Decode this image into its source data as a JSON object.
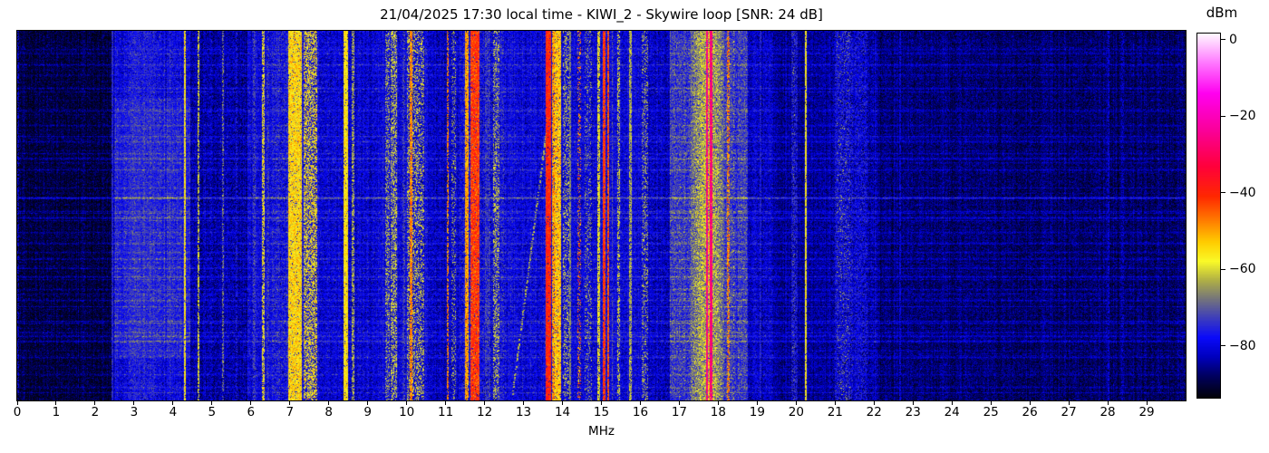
{
  "chart_data": {
    "type": "heatmap",
    "subtype": "radio-spectrogram-waterfall",
    "title": "21/04/2025 17:30 local time - KIWI_2 - Skywire loop [SNR: 24 dB]",
    "xlabel": "MHz",
    "x_range": [
      0,
      30
    ],
    "x_ticks": [
      0,
      1,
      2,
      3,
      4,
      5,
      6,
      7,
      8,
      9,
      10,
      11,
      12,
      13,
      14,
      15,
      16,
      17,
      18,
      19,
      20,
      21,
      22,
      23,
      24,
      25,
      26,
      27,
      28,
      29
    ],
    "y_axis": "time (no tick labels shown)",
    "grid": false,
    "colorbar": {
      "label": "dBm",
      "ticks": [
        0,
        -20,
        -40,
        -60,
        -80
      ],
      "range_top_dbm": 1.6,
      "range_bottom_dbm": -93.6,
      "colormap_stops": [
        [
          1.6,
          "#fff8ff"
        ],
        [
          -6,
          "#ff78ff"
        ],
        [
          -14,
          "#ff00f0"
        ],
        [
          -24,
          "#fa0096"
        ],
        [
          -33,
          "#ff003c"
        ],
        [
          -41,
          "#ff2800"
        ],
        [
          -47,
          "#ff7800"
        ],
        [
          -53,
          "#ffcd00"
        ],
        [
          -58,
          "#fafa28"
        ],
        [
          -63,
          "#afaf46"
        ],
        [
          -68,
          "#73737d"
        ],
        [
          -73,
          "#3c3cbe"
        ],
        [
          -78,
          "#0a0afa"
        ],
        [
          -83,
          "#0000be"
        ],
        [
          -88,
          "#00005f"
        ],
        [
          -93.6,
          "#02020a"
        ]
      ]
    },
    "noise_floor_regions": [
      {
        "f0": 0.0,
        "f1": 2.42,
        "dbm": -90.5
      },
      {
        "f0": 2.42,
        "f1": 2.5,
        "dbm": -85
      },
      {
        "f0": 2.5,
        "f1": 4.45,
        "dbm": -80
      },
      {
        "f0": 4.45,
        "f1": 5.9,
        "dbm": -84.5
      },
      {
        "f0": 5.9,
        "f1": 6.55,
        "dbm": -80.5
      },
      {
        "f0": 6.55,
        "f1": 7.45,
        "dbm": -78.5
      },
      {
        "f0": 7.45,
        "f1": 8.3,
        "dbm": -81
      },
      {
        "f0": 8.3,
        "f1": 9.2,
        "dbm": -82
      },
      {
        "f0": 9.2,
        "f1": 10.55,
        "dbm": -80.5
      },
      {
        "f0": 10.55,
        "f1": 11.35,
        "dbm": -82.5
      },
      {
        "f0": 11.35,
        "f1": 12.55,
        "dbm": -79.5
      },
      {
        "f0": 12.55,
        "f1": 13.4,
        "dbm": -80.5
      },
      {
        "f0": 13.4,
        "f1": 14.8,
        "dbm": -80
      },
      {
        "f0": 14.8,
        "f1": 16.2,
        "dbm": -81
      },
      {
        "f0": 16.2,
        "f1": 16.75,
        "dbm": -83
      },
      {
        "f0": 16.75,
        "f1": 18.75,
        "dbm": -74
      },
      {
        "f0": 18.75,
        "f1": 19.4,
        "dbm": -82.5
      },
      {
        "f0": 19.4,
        "f1": 20.9,
        "dbm": -85.5
      },
      {
        "f0": 20.9,
        "f1": 22.1,
        "dbm": -84.5
      },
      {
        "f0": 22.1,
        "f1": 25.5,
        "dbm": -87.5
      },
      {
        "f0": 25.5,
        "f1": 30.0,
        "dbm": -88
      }
    ],
    "signal_bands": [
      {
        "f0": 0.0,
        "f1": 0.04,
        "dbm": -80,
        "var": 2,
        "p": 0.5
      },
      {
        "f0": 2.43,
        "f1": 2.47,
        "dbm": -75,
        "var": 2,
        "p": 0.85
      },
      {
        "f0": 2.85,
        "f1": 3.55,
        "dbm": -76,
        "var": 3,
        "p": 0.6
      },
      {
        "f0": 3.9,
        "f1": 3.95,
        "dbm": -74,
        "var": 2,
        "p": 0.55
      },
      {
        "f0": 4.28,
        "f1": 4.34,
        "dbm": -56,
        "var": 3,
        "p": 0.92
      },
      {
        "f0": 4.63,
        "f1": 4.68,
        "dbm": -60,
        "var": 3,
        "p": 0.7
      },
      {
        "f0": 5.26,
        "f1": 5.31,
        "dbm": -68,
        "var": 4,
        "p": 0.6
      },
      {
        "f0": 5.6,
        "f1": 5.65,
        "dbm": -76,
        "var": 2,
        "p": 0.5
      },
      {
        "f0": 6.05,
        "f1": 6.11,
        "dbm": -72,
        "var": 3,
        "p": 0.6
      },
      {
        "f0": 6.28,
        "f1": 6.35,
        "dbm": -58,
        "var": 4,
        "p": 0.7
      },
      {
        "f0": 6.4,
        "f1": 6.48,
        "dbm": -73,
        "var": 3,
        "p": 0.5
      },
      {
        "f0": 6.95,
        "f1": 7.3,
        "dbm": -55,
        "var": 4,
        "p": 0.95
      },
      {
        "f0": 7.35,
        "f1": 7.7,
        "dbm": -58,
        "var": 5,
        "p": 0.6
      },
      {
        "f0": 8.37,
        "f1": 8.5,
        "dbm": -56,
        "var": 3,
        "p": 0.95
      },
      {
        "f0": 8.58,
        "f1": 8.65,
        "dbm": -63,
        "var": 3,
        "p": 0.65
      },
      {
        "f0": 9.45,
        "f1": 9.56,
        "dbm": -63,
        "var": 3,
        "p": 0.4
      },
      {
        "f0": 9.58,
        "f1": 9.76,
        "dbm": -61,
        "var": 3,
        "p": 0.5
      },
      {
        "f0": 9.9,
        "f1": 9.96,
        "dbm": -72,
        "var": 3,
        "p": 0.5
      },
      {
        "f0": 10.0,
        "f1": 10.45,
        "dbm": -61,
        "var": 4,
        "p": 0.38
      },
      {
        "f0": 10.07,
        "f1": 10.14,
        "dbm": -48,
        "var": 3,
        "p": 0.85
      },
      {
        "f0": 11.03,
        "f1": 11.07,
        "dbm": -48,
        "var": 3,
        "p": 0.6
      },
      {
        "f0": 11.14,
        "f1": 11.26,
        "dbm": -64,
        "var": 3,
        "p": 0.3
      },
      {
        "f0": 11.5,
        "f1": 11.6,
        "dbm": -50,
        "var": 3,
        "p": 0.9
      },
      {
        "f0": 11.63,
        "f1": 11.87,
        "dbm": -42,
        "var": 4,
        "p": 0.95
      },
      {
        "f0": 12.0,
        "f1": 12.15,
        "dbm": -72,
        "var": 3,
        "p": 0.5
      },
      {
        "f0": 12.21,
        "f1": 12.39,
        "dbm": -62,
        "var": 3,
        "p": 0.4
      },
      {
        "f0": 13.58,
        "f1": 13.7,
        "dbm": -40,
        "var": 3,
        "p": 0.96
      },
      {
        "f0": 13.72,
        "f1": 13.8,
        "dbm": -50,
        "var": 4,
        "p": 0.85
      },
      {
        "f0": 13.8,
        "f1": 13.96,
        "dbm": -53,
        "var": 4,
        "p": 0.92
      },
      {
        "f0": 14.0,
        "f1": 14.17,
        "dbm": -62,
        "var": 3,
        "p": 0.3
      },
      {
        "f0": 14.18,
        "f1": 14.22,
        "dbm": -66,
        "var": 2,
        "p": 0.8
      },
      {
        "f0": 14.38,
        "f1": 14.47,
        "dbm": -48,
        "var": 5,
        "p": 0.3
      },
      {
        "f0": 14.56,
        "f1": 14.75,
        "dbm": -64,
        "var": 3,
        "p": 0.22
      },
      {
        "f0": 14.9,
        "f1": 14.97,
        "dbm": -58,
        "var": 3,
        "p": 0.8
      },
      {
        "f0": 15.04,
        "f1": 15.1,
        "dbm": -42,
        "var": 3,
        "p": 0.95
      },
      {
        "f0": 15.14,
        "f1": 15.2,
        "dbm": -44,
        "var": 3,
        "p": 0.93
      },
      {
        "f0": 15.27,
        "f1": 15.3,
        "dbm": -70,
        "var": 2,
        "p": 0.6
      },
      {
        "f0": 15.4,
        "f1": 15.47,
        "dbm": -60,
        "var": 3,
        "p": 0.5
      },
      {
        "f0": 15.72,
        "f1": 15.78,
        "dbm": -63,
        "var": 3,
        "p": 0.8
      },
      {
        "f0": 16.03,
        "f1": 16.19,
        "dbm": -63,
        "var": 3,
        "p": 0.3
      },
      {
        "f0": 17.3,
        "f1": 18.15,
        "dbm": -61,
        "var": 5,
        "p": 0.85,
        "soft": true
      },
      {
        "f0": 17.695,
        "f1": 17.745,
        "dbm": -26,
        "var": 2,
        "p": 0.97
      },
      {
        "f0": 17.75,
        "f1": 17.79,
        "dbm": -50,
        "var": 4,
        "p": 0.5
      },
      {
        "f0": 17.79,
        "f1": 17.84,
        "dbm": -27,
        "var": 2,
        "p": 0.97
      },
      {
        "f0": 18.23,
        "f1": 18.3,
        "dbm": -48,
        "var": 4,
        "p": 0.65
      },
      {
        "f0": 18.38,
        "f1": 18.42,
        "dbm": -62,
        "var": 3,
        "p": 0.25
      },
      {
        "f0": 19.05,
        "f1": 19.1,
        "dbm": -75,
        "var": 2,
        "p": 0.6
      },
      {
        "f0": 19.88,
        "f1": 20.05,
        "dbm": -75,
        "var": 2,
        "p": 0.5
      },
      {
        "f0": 19.9,
        "f1": 19.97,
        "dbm": -68,
        "var": 3,
        "p": 0.1
      },
      {
        "f0": 20.215,
        "f1": 20.265,
        "dbm": -57,
        "var": 2.5,
        "p": 0.93
      },
      {
        "f0": 21.0,
        "f1": 21.45,
        "dbm": -76,
        "var": 3,
        "p": 0.5
      },
      {
        "f0": 21.05,
        "f1": 21.4,
        "dbm": -65,
        "var": 3,
        "p": 0.07
      },
      {
        "f0": 21.5,
        "f1": 21.82,
        "dbm": -77,
        "var": 3,
        "p": 0.5
      },
      {
        "f0": 22.64,
        "f1": 22.69,
        "dbm": -80,
        "var": 2,
        "p": 0.8
      },
      {
        "f0": 28.0,
        "f1": 28.05,
        "dbm": -80,
        "var": 2,
        "p": 0.7
      },
      {
        "f0": 28.35,
        "f1": 28.41,
        "dbm": -81,
        "var": 2,
        "p": 0.4
      }
    ],
    "horizontal_streak_rows": [
      {
        "y": 0.05,
        "db": 4
      },
      {
        "y": 0.09,
        "db": 6
      },
      {
        "y": 0.155,
        "db": 5
      },
      {
        "y": 0.215,
        "db": 4
      },
      {
        "y": 0.255,
        "db": 4
      },
      {
        "y": 0.3,
        "db": 5
      },
      {
        "y": 0.345,
        "db": 4
      },
      {
        "y": 0.375,
        "db": 5
      },
      {
        "y": 0.452,
        "db": 12
      },
      {
        "y": 0.49,
        "db": 5
      },
      {
        "y": 0.507,
        "db": 7
      },
      {
        "y": 0.545,
        "db": 4
      },
      {
        "y": 0.6,
        "db": 4
      },
      {
        "y": 0.665,
        "db": 6
      },
      {
        "y": 0.7,
        "db": 4
      },
      {
        "y": 0.73,
        "db": 5
      },
      {
        "y": 0.79,
        "db": 5
      },
      {
        "y": 0.825,
        "db": 4
      },
      {
        "y": 0.84,
        "db": 6
      },
      {
        "y": 0.885,
        "db": 5
      },
      {
        "y": 0.93,
        "db": 4
      },
      {
        "y": 0.965,
        "db": 4
      }
    ],
    "diagonal_sweep": {
      "f_start": 12.7,
      "y_start": 0.985,
      "f_end": 13.58,
      "y_end": 0.26,
      "dbm": -63,
      "dash_p": 0.55
    },
    "seed": 1337
  }
}
